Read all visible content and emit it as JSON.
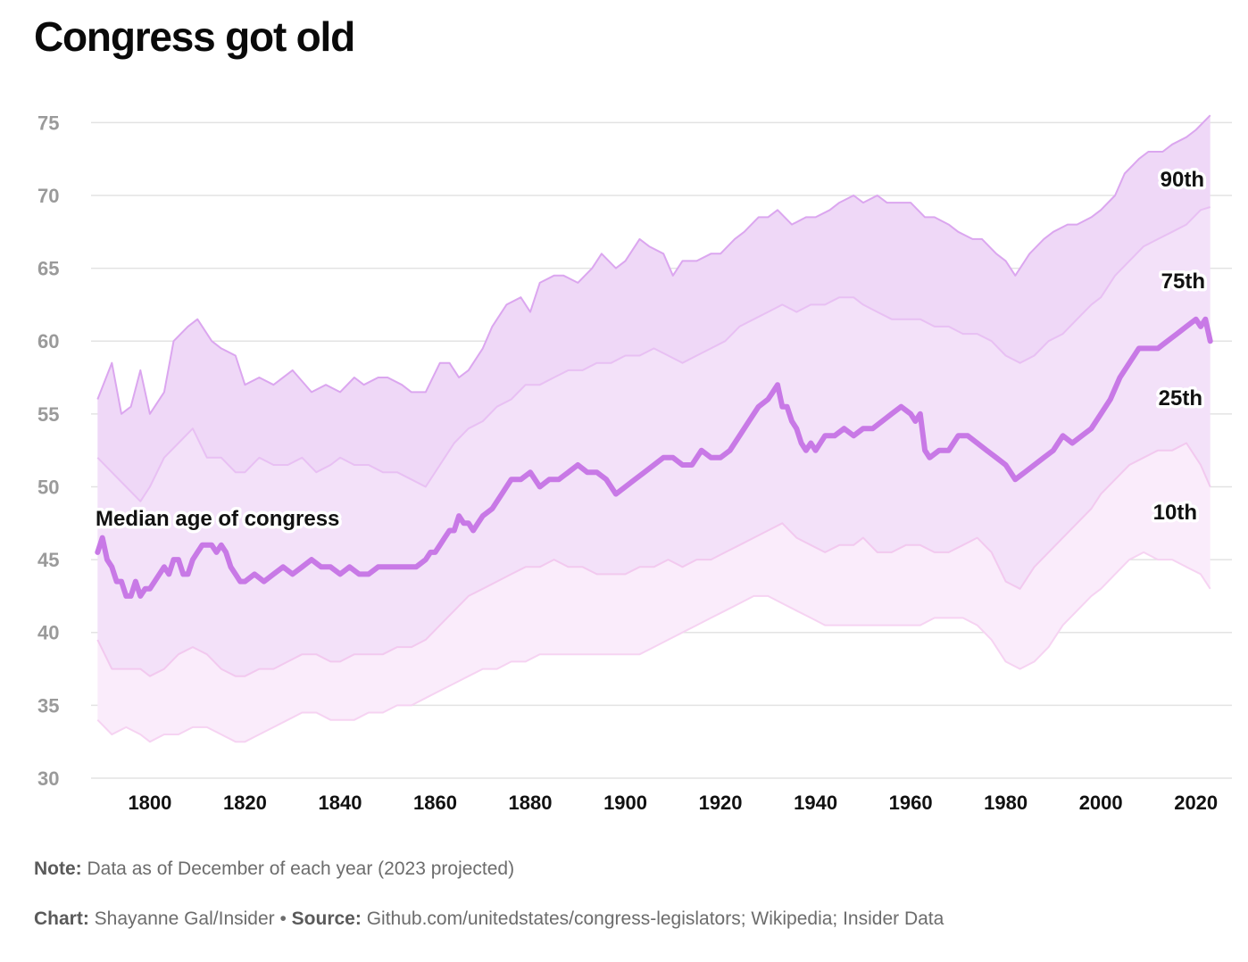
{
  "title": "Congress got old",
  "colors": {
    "p90_fill": "#efd8f7",
    "p75_fill": "#f3e1f9",
    "p25_fill": "#faecfb",
    "p90_line": "#dba6ef",
    "p75_line": "#e8c0f3",
    "p25_line": "#f2c9ef",
    "p10_line": "#f6d3f2",
    "median": "#c879e6",
    "grid": "#e3e3e3",
    "tick": "#9a9a9a"
  },
  "chart_data": {
    "type": "area",
    "title": "Congress got old",
    "xlabel": "",
    "ylabel": "",
    "xlim": [
      1788,
      2024
    ],
    "ylim": [
      30,
      76
    ],
    "x_ticks": [
      1800,
      1820,
      1840,
      1860,
      1880,
      1900,
      1920,
      1940,
      1960,
      1980,
      2000,
      2020
    ],
    "y_ticks": [
      30,
      35,
      40,
      45,
      50,
      55,
      60,
      65,
      70,
      75
    ],
    "grid": true,
    "median_label": "Median age of congress",
    "series": [
      {
        "name": "90th",
        "x": [
          1789,
          1792,
          1794,
          1796,
          1798,
          1800,
          1803,
          1805,
          1808,
          1810,
          1813,
          1815,
          1818,
          1820,
          1823,
          1826,
          1830,
          1834,
          1837,
          1840,
          1843,
          1845,
          1848,
          1850,
          1853,
          1855,
          1858,
          1861,
          1863,
          1865,
          1867,
          1870,
          1872,
          1875,
          1878,
          1880,
          1882,
          1885,
          1887,
          1890,
          1893,
          1895,
          1898,
          1900,
          1903,
          1905,
          1908,
          1910,
          1912,
          1915,
          1918,
          1920,
          1923,
          1925,
          1928,
          1930,
          1932,
          1935,
          1938,
          1940,
          1943,
          1945,
          1948,
          1950,
          1953,
          1955,
          1958,
          1960,
          1963,
          1965,
          1968,
          1970,
          1973,
          1975,
          1978,
          1980,
          1982,
          1985,
          1988,
          1990,
          1993,
          1995,
          1998,
          2000,
          2003,
          2005,
          2008,
          2010,
          2013,
          2015,
          2018,
          2020,
          2023
        ],
        "values": [
          56,
          58.5,
          55,
          55.5,
          58,
          55,
          56.5,
          60,
          61,
          61.5,
          60,
          59.5,
          59,
          57,
          57.5,
          57,
          58,
          56.5,
          57,
          56.5,
          57.5,
          57,
          57.5,
          57.5,
          57,
          56.5,
          56.5,
          58.5,
          58.5,
          57.5,
          58,
          59.5,
          61,
          62.5,
          63,
          62,
          64,
          64.5,
          64.5,
          64,
          65,
          66,
          65,
          65.5,
          67,
          66.5,
          66,
          64.5,
          65.5,
          65.5,
          66,
          66,
          67,
          67.5,
          68.5,
          68.5,
          69,
          68,
          68.5,
          68.5,
          69,
          69.5,
          70,
          69.5,
          70,
          69.5,
          69.5,
          69.5,
          68.5,
          68.5,
          68,
          67.5,
          67,
          67,
          66,
          65.5,
          64.5,
          66,
          67,
          67.5,
          68,
          68,
          68.5,
          69,
          70,
          71.5,
          72.5,
          73,
          73,
          73.5,
          74,
          74.5,
          75.5
        ]
      },
      {
        "name": "75th",
        "x": [
          1789,
          1792,
          1795,
          1798,
          1800,
          1803,
          1806,
          1809,
          1812,
          1815,
          1818,
          1820,
          1823,
          1826,
          1829,
          1832,
          1835,
          1838,
          1840,
          1843,
          1846,
          1849,
          1852,
          1855,
          1858,
          1861,
          1864,
          1867,
          1870,
          1873,
          1876,
          1879,
          1882,
          1885,
          1888,
          1891,
          1894,
          1897,
          1900,
          1903,
          1906,
          1909,
          1912,
          1915,
          1918,
          1921,
          1924,
          1927,
          1930,
          1933,
          1936,
          1939,
          1942,
          1945,
          1948,
          1950,
          1953,
          1956,
          1959,
          1962,
          1965,
          1968,
          1971,
          1974,
          1977,
          1980,
          1983,
          1986,
          1989,
          1992,
          1995,
          1998,
          2000,
          2003,
          2006,
          2009,
          2012,
          2015,
          2018,
          2021,
          2023
        ],
        "values": [
          52,
          51,
          50,
          49,
          50,
          52,
          53,
          54,
          52,
          52,
          51,
          51,
          52,
          51.5,
          51.5,
          52,
          51,
          51.5,
          52,
          51.5,
          51.5,
          51,
          51,
          50.5,
          50,
          51.5,
          53,
          54,
          54.5,
          55.5,
          56,
          57,
          57,
          57.5,
          58,
          58,
          58.5,
          58.5,
          59,
          59,
          59.5,
          59,
          58.5,
          59,
          59.5,
          60,
          61,
          61.5,
          62,
          62.5,
          62,
          62.5,
          62.5,
          63,
          63,
          62.5,
          62,
          61.5,
          61.5,
          61.5,
          61,
          61,
          60.5,
          60.5,
          60,
          59,
          58.5,
          59,
          60,
          60.5,
          61.5,
          62.5,
          63,
          64.5,
          65.5,
          66.5,
          67,
          67.5,
          68,
          69,
          69.2
        ]
      },
      {
        "name": "25th",
        "x": [
          1789,
          1792,
          1795,
          1798,
          1800,
          1803,
          1806,
          1809,
          1812,
          1815,
          1818,
          1820,
          1823,
          1826,
          1829,
          1832,
          1835,
          1838,
          1840,
          1843,
          1846,
          1849,
          1852,
          1855,
          1858,
          1861,
          1864,
          1867,
          1870,
          1873,
          1876,
          1879,
          1882,
          1885,
          1888,
          1891,
          1894,
          1897,
          1900,
          1903,
          1906,
          1909,
          1912,
          1915,
          1918,
          1921,
          1924,
          1927,
          1930,
          1933,
          1936,
          1939,
          1942,
          1945,
          1948,
          1950,
          1953,
          1956,
          1959,
          1962,
          1965,
          1968,
          1971,
          1974,
          1977,
          1980,
          1983,
          1986,
          1989,
          1992,
          1995,
          1998,
          2000,
          2003,
          2006,
          2009,
          2012,
          2015,
          2018,
          2021,
          2023
        ],
        "values": [
          39.5,
          37.5,
          37.5,
          37.5,
          37,
          37.5,
          38.5,
          39,
          38.5,
          37.5,
          37,
          37,
          37.5,
          37.5,
          38,
          38.5,
          38.5,
          38,
          38,
          38.5,
          38.5,
          38.5,
          39,
          39,
          39.5,
          40.5,
          41.5,
          42.5,
          43,
          43.5,
          44,
          44.5,
          44.5,
          45,
          44.5,
          44.5,
          44,
          44,
          44,
          44.5,
          44.5,
          45,
          44.5,
          45,
          45,
          45.5,
          46,
          46.5,
          47,
          47.5,
          46.5,
          46,
          45.5,
          46,
          46,
          46.5,
          45.5,
          45.5,
          46,
          46,
          45.5,
          45.5,
          46,
          46.5,
          45.5,
          43.5,
          43,
          44.5,
          45.5,
          46.5,
          47.5,
          48.5,
          49.5,
          50.5,
          51.5,
          52,
          52.5,
          52.5,
          53,
          51.5,
          50
        ]
      },
      {
        "name": "10th",
        "x": [
          1789,
          1792,
          1795,
          1798,
          1800,
          1803,
          1806,
          1809,
          1812,
          1815,
          1818,
          1820,
          1823,
          1826,
          1829,
          1832,
          1835,
          1838,
          1840,
          1843,
          1846,
          1849,
          1852,
          1855,
          1858,
          1861,
          1864,
          1867,
          1870,
          1873,
          1876,
          1879,
          1882,
          1885,
          1888,
          1891,
          1894,
          1897,
          1900,
          1903,
          1906,
          1909,
          1912,
          1915,
          1918,
          1921,
          1924,
          1927,
          1930,
          1933,
          1936,
          1939,
          1942,
          1945,
          1948,
          1950,
          1953,
          1956,
          1959,
          1962,
          1965,
          1968,
          1971,
          1974,
          1977,
          1980,
          1983,
          1986,
          1989,
          1992,
          1995,
          1998,
          2000,
          2003,
          2006,
          2009,
          2012,
          2015,
          2018,
          2021,
          2023
        ],
        "values": [
          34,
          33,
          33.5,
          33,
          32.5,
          33,
          33,
          33.5,
          33.5,
          33,
          32.5,
          32.5,
          33,
          33.5,
          34,
          34.5,
          34.5,
          34,
          34,
          34,
          34.5,
          34.5,
          35,
          35,
          35.5,
          36,
          36.5,
          37,
          37.5,
          37.5,
          38,
          38,
          38.5,
          38.5,
          38.5,
          38.5,
          38.5,
          38.5,
          38.5,
          38.5,
          39,
          39.5,
          40,
          40.5,
          41,
          41.5,
          42,
          42.5,
          42.5,
          42,
          41.5,
          41,
          40.5,
          40.5,
          40.5,
          40.5,
          40.5,
          40.5,
          40.5,
          40.5,
          41,
          41,
          41,
          40.5,
          39.5,
          38,
          37.5,
          38,
          39,
          40.5,
          41.5,
          42.5,
          43,
          44,
          45,
          45.5,
          45,
          45,
          44.5,
          44,
          43
        ]
      },
      {
        "name": "Median",
        "x": [
          1789,
          1790,
          1791,
          1792,
          1793,
          1794,
          1795,
          1796,
          1797,
          1798,
          1799,
          1800,
          1801,
          1802,
          1803,
          1804,
          1805,
          1806,
          1807,
          1808,
          1809,
          1810,
          1811,
          1812,
          1813,
          1814,
          1815,
          1816,
          1817,
          1818,
          1819,
          1820,
          1822,
          1824,
          1826,
          1828,
          1830,
          1832,
          1834,
          1836,
          1838,
          1840,
          1842,
          1844,
          1846,
          1848,
          1850,
          1852,
          1854,
          1856,
          1858,
          1859,
          1860,
          1861,
          1862,
          1863,
          1864,
          1865,
          1866,
          1867,
          1868,
          1869,
          1870,
          1872,
          1874,
          1876,
          1878,
          1880,
          1882,
          1884,
          1886,
          1888,
          1890,
          1892,
          1894,
          1896,
          1898,
          1900,
          1902,
          1904,
          1906,
          1908,
          1910,
          1912,
          1914,
          1916,
          1918,
          1920,
          1922,
          1924,
          1926,
          1928,
          1930,
          1931,
          1932,
          1933,
          1934,
          1935,
          1936,
          1937,
          1938,
          1939,
          1940,
          1942,
          1944,
          1946,
          1948,
          1950,
          1952,
          1954,
          1956,
          1958,
          1960,
          1961,
          1962,
          1963,
          1964,
          1966,
          1968,
          1970,
          1972,
          1974,
          1976,
          1978,
          1980,
          1981,
          1982,
          1984,
          1986,
          1988,
          1990,
          1992,
          1994,
          1996,
          1998,
          2000,
          2002,
          2004,
          2006,
          2008,
          2010,
          2012,
          2014,
          2016,
          2018,
          2020,
          2021,
          2022,
          2023
        ],
        "values": [
          45.5,
          46.5,
          45,
          44.5,
          43.5,
          43.5,
          42.5,
          42.5,
          43.5,
          42.5,
          43,
          43,
          43.5,
          44,
          44.5,
          44,
          45,
          45,
          44,
          44,
          45,
          45.5,
          46,
          46,
          46,
          45.5,
          46,
          45.5,
          44.5,
          44,
          43.5,
          43.5,
          44,
          43.5,
          44,
          44.5,
          44,
          44.5,
          45,
          44.5,
          44.5,
          44,
          44.5,
          44,
          44,
          44.5,
          44.5,
          44.5,
          44.5,
          44.5,
          45,
          45.5,
          45.5,
          46,
          46.5,
          47,
          47,
          48,
          47.5,
          47.5,
          47,
          47.5,
          48,
          48.5,
          49.5,
          50.5,
          50.5,
          51,
          50,
          50.5,
          50.5,
          51,
          51.5,
          51,
          51,
          50.5,
          49.5,
          50,
          50.5,
          51,
          51.5,
          52,
          52,
          51.5,
          51.5,
          52.5,
          52,
          52,
          52.5,
          53.5,
          54.5,
          55.5,
          56,
          56.5,
          57,
          55.5,
          55.5,
          54.5,
          54,
          53,
          52.5,
          53,
          52.5,
          53.5,
          53.5,
          54,
          53.5,
          54,
          54,
          54.5,
          55,
          55.5,
          55,
          54.5,
          55,
          52.5,
          52,
          52.5,
          52.5,
          53.5,
          53.5,
          53,
          52.5,
          52,
          51.5,
          51,
          50.5,
          51,
          51.5,
          52,
          52.5,
          53.5,
          53,
          53.5,
          54,
          55,
          56,
          57.5,
          58.5,
          59.5,
          59.5,
          59.5,
          60,
          60.5,
          61,
          61.5,
          61,
          61.5,
          60
        ]
      }
    ]
  },
  "footer": {
    "note_label": "Note:",
    "note_text": " Data as of December of each year (2023 projected)",
    "chart_label": "Chart:",
    "chart_text": " Shayanne Gal/Insider • ",
    "source_label": "Source:",
    "source_text": " Github.com/unitedstates/congress-legislators; Wikipedia; Insider Data"
  }
}
